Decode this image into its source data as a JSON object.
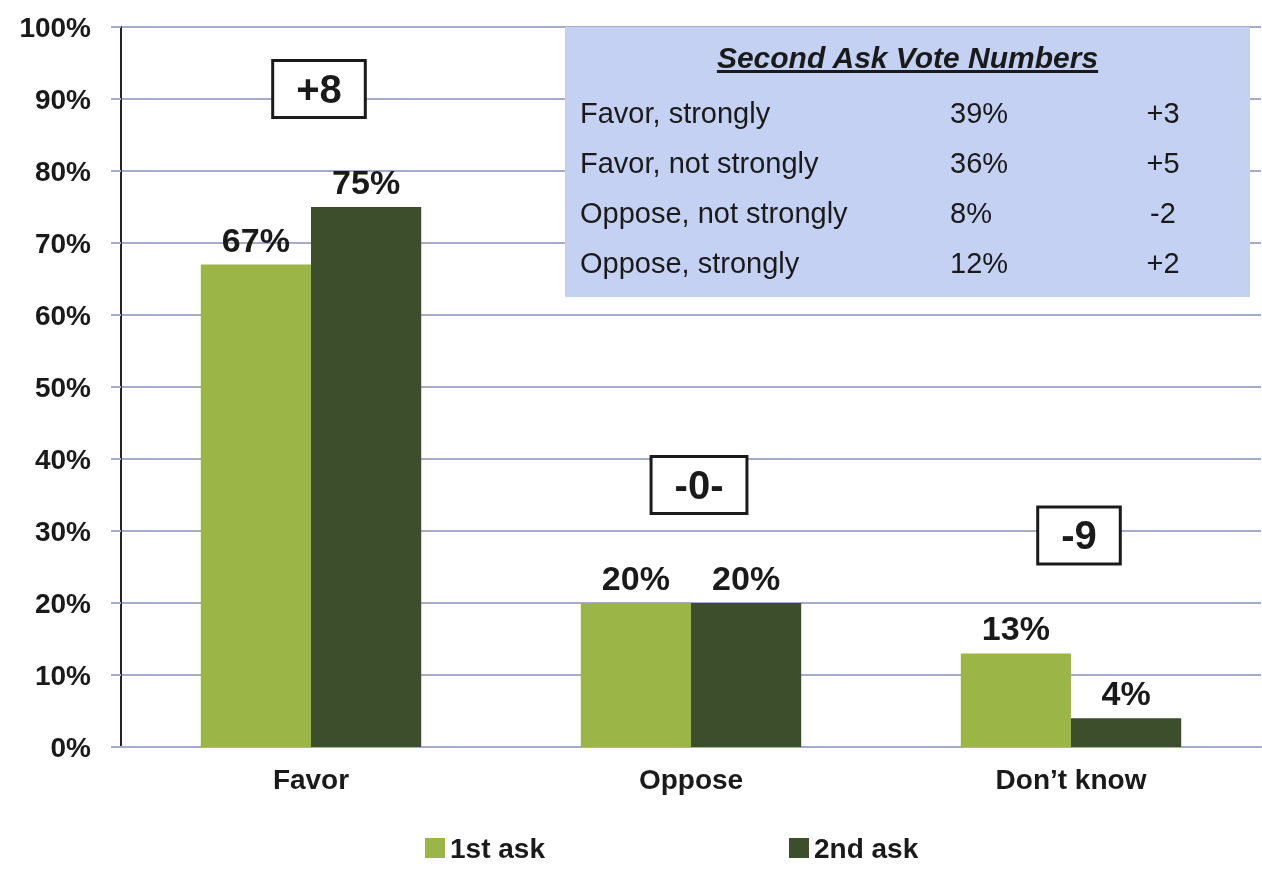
{
  "chart_data": {
    "type": "bar",
    "categories": [
      "Favor",
      "Oppose",
      "Don’t know"
    ],
    "series": [
      {
        "name": "1st ask",
        "color": "#9bb547",
        "values": [
          67,
          20,
          13
        ],
        "value_labels": [
          "67%",
          "20%",
          "13%"
        ]
      },
      {
        "name": "2nd ask",
        "color": "#3d4e2c",
        "values": [
          75,
          20,
          4
        ],
        "value_labels": [
          "75%",
          "20%",
          "4%"
        ]
      }
    ],
    "ylim": [
      0,
      100
    ],
    "yticks": [
      {
        "value": 0,
        "label": "0%"
      },
      {
        "value": 10,
        "label": "10%"
      },
      {
        "value": 20,
        "label": "20%"
      },
      {
        "value": 30,
        "label": "30%"
      },
      {
        "value": 40,
        "label": "40%"
      },
      {
        "value": 50,
        "label": "50%"
      },
      {
        "value": 60,
        "label": "60%"
      },
      {
        "value": 70,
        "label": "70%"
      },
      {
        "value": 80,
        "label": "80%"
      },
      {
        "value": 90,
        "label": "90%"
      },
      {
        "value": 100,
        "label": "100%"
      }
    ],
    "grid": "y",
    "legend": "bottom",
    "annotations": [
      "+8",
      "-0-",
      "-9",
      "Second Ask Vote Numbers",
      "Favor, strongly",
      "39%",
      "+3",
      "Favor, not strongly",
      "36%",
      "+5",
      "Oppose, not strongly",
      "8%",
      "-2",
      "Oppose, strongly",
      "12%",
      "+2"
    ]
  }
}
